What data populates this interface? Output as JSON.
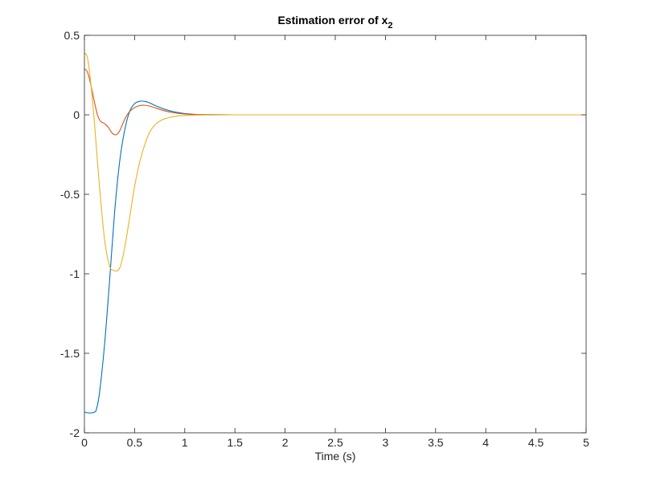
{
  "chart_data": {
    "type": "line",
    "title": {
      "main": "Estimation error of x",
      "subscript": "2"
    },
    "xlabel": "Time (s)",
    "ylabel": "",
    "xlim": [
      0,
      5
    ],
    "ylim": [
      -2,
      0.5
    ],
    "xticks": [
      0,
      0.5,
      1,
      1.5,
      2,
      2.5,
      3,
      3.5,
      4,
      4.5,
      5
    ],
    "xtick_labels": [
      "0",
      "0.5",
      "1",
      "1.5",
      "2",
      "2.5",
      "3",
      "3.5",
      "4",
      "4.5",
      "5"
    ],
    "yticks": [
      0.5,
      0,
      -0.5,
      -1,
      -1.5,
      -2
    ],
    "ytick_labels": [
      "0.5",
      "0",
      "-0.5",
      "-1",
      "-1.5",
      "-2"
    ],
    "grid": false,
    "box": true,
    "legend": "none",
    "series": [
      {
        "color": "#0072BD",
        "x": [
          0,
          0.05,
          0.1,
          0.12,
          0.15,
          0.2,
          0.25,
          0.3,
          0.35,
          0.4,
          0.45,
          0.5,
          0.55,
          0.6,
          0.65,
          0.7,
          0.8,
          0.9,
          1.0,
          1.1,
          1.2,
          1.5,
          2,
          3,
          4,
          5
        ],
        "y": [
          -1.87,
          -1.875,
          -1.87,
          -1.85,
          -1.75,
          -1.45,
          -1.05,
          -0.62,
          -0.3,
          -0.1,
          0.02,
          0.07,
          0.085,
          0.085,
          0.075,
          0.06,
          0.035,
          0.018,
          0.008,
          0.003,
          0.001,
          0,
          0,
          0,
          0,
          0
        ]
      },
      {
        "color": "#D95319",
        "x": [
          0,
          0.03,
          0.06,
          0.1,
          0.13,
          0.16,
          0.2,
          0.24,
          0.27,
          0.3,
          0.33,
          0.36,
          0.4,
          0.45,
          0.5,
          0.55,
          0.6,
          0.65,
          0.7,
          0.8,
          0.9,
          1.0,
          1.1,
          1.2,
          1.5,
          2,
          3,
          4,
          5
        ],
        "y": [
          0.29,
          0.27,
          0.2,
          0.08,
          0,
          -0.04,
          -0.055,
          -0.08,
          -0.11,
          -0.125,
          -0.12,
          -0.09,
          -0.03,
          0.02,
          0.045,
          0.058,
          0.06,
          0.055,
          0.045,
          0.025,
          0.012,
          0.005,
          0.002,
          0.001,
          0,
          0,
          0,
          0,
          0
        ]
      },
      {
        "color": "#EDB120",
        "x": [
          0,
          0.03,
          0.06,
          0.1,
          0.15,
          0.2,
          0.25,
          0.3,
          0.33,
          0.36,
          0.4,
          0.45,
          0.5,
          0.55,
          0.6,
          0.65,
          0.7,
          0.75,
          0.8,
          0.9,
          1.0,
          1.1,
          1.2,
          1.5,
          2,
          3,
          4,
          5
        ],
        "y": [
          0.39,
          0.36,
          0.22,
          -0.05,
          -0.45,
          -0.78,
          -0.95,
          -0.98,
          -0.98,
          -0.95,
          -0.84,
          -0.65,
          -0.45,
          -0.3,
          -0.19,
          -0.11,
          -0.065,
          -0.04,
          -0.025,
          -0.01,
          -0.004,
          -0.002,
          -0.001,
          0,
          0,
          0,
          0,
          0
        ]
      }
    ]
  }
}
